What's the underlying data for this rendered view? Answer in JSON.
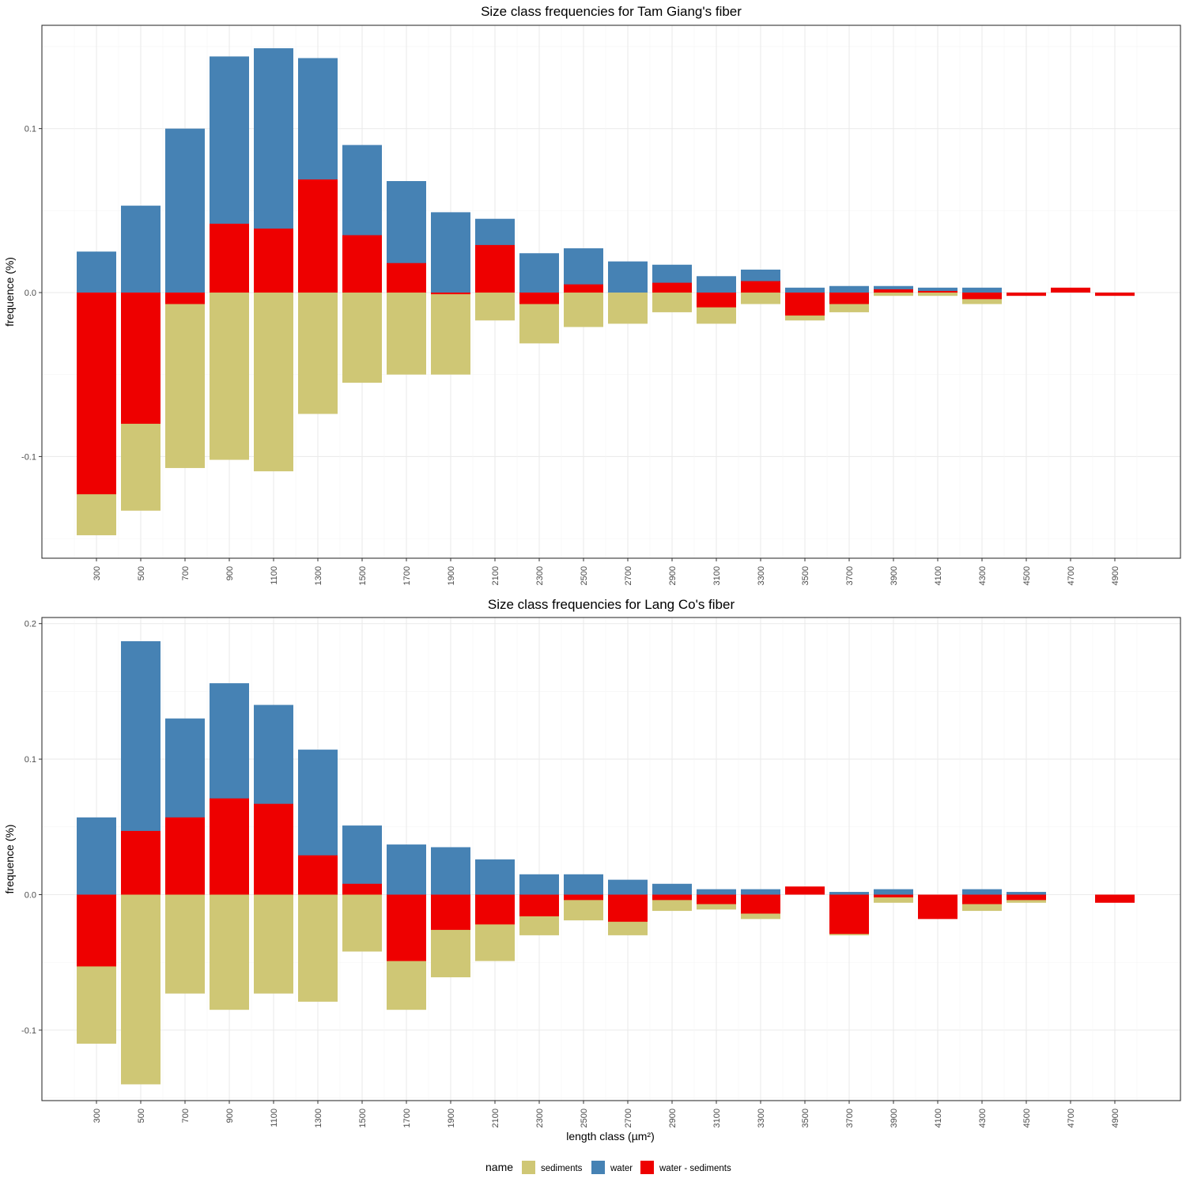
{
  "chart_data": [
    {
      "type": "bar",
      "title": "Size class frequencies for Tam Giang's fiber",
      "xlabel": "",
      "ylabel": "frequence (%)",
      "ylim": [
        -0.162,
        0.163
      ],
      "yticks": [
        -0.1,
        0.0,
        0.1
      ],
      "ytick_labels": [
        "-0.1",
        "0.0",
        "0.1"
      ],
      "grid": true,
      "categories": [
        "300",
        "500",
        "700",
        "900",
        "1100",
        "1300",
        "1500",
        "1700",
        "1900",
        "2100",
        "2300",
        "2500",
        "2700",
        "2900",
        "3100",
        "3300",
        "3500",
        "3700",
        "3900",
        "4100",
        "4300",
        "4500",
        "4700",
        "4900"
      ],
      "series": [
        {
          "name": "water",
          "values": [
            0.025,
            0.053,
            0.1,
            0.144,
            0.149,
            0.143,
            0.09,
            0.068,
            0.049,
            0.045,
            0.024,
            0.027,
            0.019,
            0.017,
            0.01,
            0.014,
            0.003,
            0.004,
            0.004,
            0.003,
            0.003,
            0.0,
            0.0,
            0.0
          ]
        },
        {
          "name": "sediments",
          "values": [
            -0.148,
            -0.133,
            -0.107,
            -0.102,
            -0.109,
            -0.074,
            -0.055,
            -0.05,
            -0.05,
            -0.017,
            -0.031,
            -0.021,
            -0.019,
            -0.012,
            -0.019,
            -0.007,
            -0.017,
            -0.012,
            -0.002,
            -0.002,
            -0.007,
            0.0,
            0.0,
            0.0
          ]
        },
        {
          "name": "water - sediments",
          "values": [
            -0.123,
            -0.08,
            -0.007,
            0.042,
            0.039,
            0.069,
            0.035,
            0.018,
            -0.001,
            0.029,
            -0.007,
            0.005,
            0.0,
            0.006,
            -0.009,
            0.007,
            -0.014,
            -0.007,
            0.002,
            0.001,
            -0.004,
            -0.002,
            0.003,
            -0.002
          ]
        }
      ]
    },
    {
      "type": "bar",
      "title": "Size class frequencies for Lang Co's fiber",
      "xlabel": "length class (µm²)",
      "ylabel": "frequence (%)",
      "ylim": [
        -0.152,
        0.2045
      ],
      "yticks": [
        -0.1,
        0.0,
        0.1,
        0.2
      ],
      "ytick_labels": [
        "-0.1",
        "0.0",
        "0.1",
        "0.2"
      ],
      "grid": true,
      "categories": [
        "300",
        "500",
        "700",
        "900",
        "1100",
        "1300",
        "1500",
        "1700",
        "1900",
        "2100",
        "2300",
        "2500",
        "2700",
        "2900",
        "3100",
        "3300",
        "3500",
        "3700",
        "3900",
        "4100",
        "4300",
        "4500",
        "4700",
        "4900"
      ],
      "series": [
        {
          "name": "water",
          "values": [
            0.057,
            0.187,
            0.13,
            0.156,
            0.14,
            0.107,
            0.051,
            0.037,
            0.035,
            0.026,
            0.015,
            0.015,
            0.011,
            0.008,
            0.004,
            0.004,
            0.0,
            0.002,
            0.004,
            0.0,
            0.004,
            0.002,
            0.0,
            0.0
          ]
        },
        {
          "name": "sediments",
          "values": [
            -0.11,
            -0.14,
            -0.073,
            -0.085,
            -0.073,
            -0.079,
            -0.042,
            -0.085,
            -0.061,
            -0.049,
            -0.03,
            -0.019,
            -0.03,
            -0.012,
            -0.011,
            -0.018,
            0.0,
            -0.03,
            -0.006,
            0.0,
            -0.012,
            -0.006,
            0.0,
            0.0
          ]
        },
        {
          "name": "water - sediments",
          "values": [
            -0.053,
            0.047,
            0.057,
            0.071,
            0.067,
            0.029,
            0.008,
            -0.049,
            -0.026,
            -0.022,
            -0.016,
            -0.004,
            -0.02,
            -0.004,
            -0.007,
            -0.014,
            0.006,
            -0.029,
            -0.002,
            -0.018,
            -0.007,
            -0.004,
            0.0,
            -0.006
          ]
        }
      ]
    }
  ],
  "legend": {
    "title": "name",
    "items": [
      {
        "label": "sediments",
        "color": "#CFC775"
      },
      {
        "label": "water",
        "color": "#4682B4"
      },
      {
        "label": "water - sediments",
        "color": "#EE0000"
      }
    ]
  },
  "colors": {
    "water": "#4682B4",
    "sediments": "#CFC775",
    "water - sediments": "#EE0000",
    "panel_border": "#333333",
    "grid_major": "#EBEBEB",
    "grid_minor": "#F5F5F5"
  }
}
